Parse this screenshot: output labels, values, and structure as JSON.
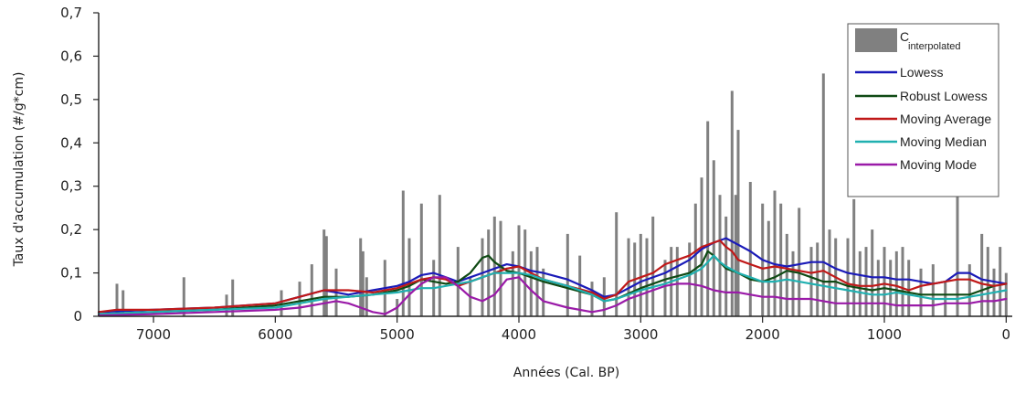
{
  "chart_data": {
    "type": "area",
    "title": "",
    "xlabel": "Années (Cal. BP)",
    "ylabel": "Taux d'accumulation (#/g*cm)",
    "xlim": [
      7450,
      -50
    ],
    "ylim": [
      0,
      0.7
    ],
    "x_reversed": true,
    "x_ticks": [
      7000,
      6000,
      5000,
      4000,
      3000,
      2000,
      1000,
      0
    ],
    "x_tick_labels": [
      "7000",
      "6000",
      "5000",
      "4000",
      "3000",
      "2000",
      "1000",
      "0"
    ],
    "y_ticks": [
      0,
      0.1,
      0.2,
      0.3,
      0.4,
      0.5,
      0.6,
      0.7
    ],
    "y_tick_labels": [
      "0",
      "0,1",
      "0,2",
      "0,3",
      "0,4",
      "0,5",
      "0,6",
      "0,7"
    ],
    "legend_position": "top-right",
    "legend": [
      {
        "label": "C",
        "sub": "interpolated",
        "kind": "bar",
        "color": "#808080"
      },
      {
        "label": "Lowess",
        "kind": "line",
        "color": "#1a1ab8"
      },
      {
        "label": "Robust Lowess",
        "kind": "line",
        "color": "#0f4a14"
      },
      {
        "label": "Moving Average",
        "kind": "line",
        "color": "#c01818"
      },
      {
        "label": "Moving Median",
        "kind": "line",
        "color": "#20b0b0"
      },
      {
        "label": "Moving Mode",
        "kind": "line",
        "color": "#9a1aa8"
      }
    ],
    "bars": {
      "name": "C interpolated",
      "color": "#808080",
      "x": [
        7300,
        7250,
        6750,
        6400,
        6350,
        5950,
        5800,
        5700,
        5600,
        5580,
        5500,
        5300,
        5280,
        5250,
        5100,
        5000,
        4950,
        4900,
        4800,
        4700,
        4650,
        4500,
        4400,
        4300,
        4250,
        4200,
        4150,
        4050,
        4000,
        3950,
        3900,
        3850,
        3800,
        3600,
        3500,
        3400,
        3300,
        3200,
        3100,
        3050,
        3000,
        2950,
        2900,
        2800,
        2750,
        2700,
        2600,
        2550,
        2500,
        2450,
        2400,
        2350,
        2300,
        2250,
        2220,
        2200,
        2100,
        2000,
        1950,
        1900,
        1850,
        1800,
        1750,
        1700,
        1600,
        1550,
        1500,
        1450,
        1400,
        1300,
        1250,
        1200,
        1150,
        1100,
        1050,
        1000,
        950,
        900,
        850,
        800,
        700,
        600,
        500,
        400,
        300,
        200,
        150,
        100,
        50,
        0
      ],
      "values": [
        0.075,
        0.06,
        0.09,
        0.05,
        0.085,
        0.06,
        0.08,
        0.12,
        0.2,
        0.185,
        0.11,
        0.18,
        0.15,
        0.09,
        0.13,
        0.04,
        0.29,
        0.18,
        0.26,
        0.13,
        0.28,
        0.16,
        0.09,
        0.18,
        0.2,
        0.23,
        0.22,
        0.15,
        0.21,
        0.2,
        0.15,
        0.16,
        0.11,
        0.19,
        0.14,
        0.08,
        0.09,
        0.24,
        0.18,
        0.17,
        0.19,
        0.18,
        0.23,
        0.13,
        0.16,
        0.16,
        0.17,
        0.26,
        0.32,
        0.45,
        0.36,
        0.28,
        0.23,
        0.52,
        0.28,
        0.43,
        0.31,
        0.26,
        0.22,
        0.29,
        0.26,
        0.19,
        0.15,
        0.25,
        0.16,
        0.17,
        0.56,
        0.2,
        0.18,
        0.18,
        0.27,
        0.15,
        0.16,
        0.2,
        0.13,
        0.16,
        0.13,
        0.15,
        0.16,
        0.13,
        0.11,
        0.12,
        0.08,
        0.29,
        0.12,
        0.19,
        0.16,
        0.11,
        0.16,
        0.1
      ]
    },
    "series": [
      {
        "name": "Lowess",
        "color": "#1a1ab8",
        "x": [
          7450,
          7000,
          6500,
          6000,
          5800,
          5600,
          5400,
          5200,
          5000,
          4900,
          4800,
          4700,
          4600,
          4500,
          4400,
          4300,
          4200,
          4100,
          4000,
          3900,
          3800,
          3600,
          3400,
          3300,
          3200,
          3000,
          2800,
          2600,
          2500,
          2400,
          2300,
          2200,
          2100,
          2000,
          1900,
          1800,
          1700,
          1600,
          1500,
          1400,
          1300,
          1200,
          1100,
          1000,
          900,
          800,
          700,
          600,
          500,
          400,
          300,
          200,
          100,
          0
        ],
        "y": [
          0.01,
          0.015,
          0.02,
          0.03,
          0.045,
          0.06,
          0.05,
          0.06,
          0.07,
          0.08,
          0.095,
          0.1,
          0.09,
          0.08,
          0.09,
          0.1,
          0.11,
          0.12,
          0.115,
          0.105,
          0.1,
          0.085,
          0.06,
          0.045,
          0.05,
          0.08,
          0.1,
          0.13,
          0.155,
          0.17,
          0.18,
          0.165,
          0.15,
          0.13,
          0.12,
          0.115,
          0.12,
          0.125,
          0.125,
          0.11,
          0.1,
          0.095,
          0.09,
          0.09,
          0.085,
          0.085,
          0.08,
          0.075,
          0.08,
          0.1,
          0.1,
          0.085,
          0.08,
          0.075
        ]
      },
      {
        "name": "Robust Lowess",
        "color": "#0f4a14",
        "x": [
          7450,
          7000,
          6500,
          6000,
          5800,
          5600,
          5400,
          5200,
          5000,
          4900,
          4800,
          4700,
          4600,
          4500,
          4400,
          4300,
          4250,
          4200,
          4100,
          4000,
          3900,
          3800,
          3600,
          3400,
          3300,
          3200,
          3000,
          2800,
          2600,
          2500,
          2450,
          2400,
          2350,
          2300,
          2200,
          2100,
          2000,
          1900,
          1800,
          1700,
          1600,
          1500,
          1400,
          1300,
          1200,
          1100,
          1000,
          900,
          800,
          700,
          600,
          500,
          400,
          300,
          200,
          100,
          0
        ],
        "y": [
          0.005,
          0.01,
          0.015,
          0.025,
          0.035,
          0.045,
          0.045,
          0.05,
          0.06,
          0.07,
          0.085,
          0.08,
          0.075,
          0.08,
          0.1,
          0.135,
          0.14,
          0.125,
          0.105,
          0.1,
          0.09,
          0.08,
          0.065,
          0.05,
          0.035,
          0.04,
          0.065,
          0.085,
          0.1,
          0.12,
          0.15,
          0.14,
          0.125,
          0.11,
          0.1,
          0.085,
          0.08,
          0.09,
          0.105,
          0.1,
          0.09,
          0.08,
          0.08,
          0.07,
          0.065,
          0.06,
          0.065,
          0.06,
          0.055,
          0.05,
          0.05,
          0.05,
          0.05,
          0.05,
          0.06,
          0.07,
          0.075
        ]
      },
      {
        "name": "Moving Average",
        "color": "#c01818",
        "x": [
          7450,
          7300,
          7000,
          6500,
          6000,
          5800,
          5600,
          5400,
          5200,
          5000,
          4900,
          4800,
          4700,
          4600,
          4500,
          4400,
          4300,
          4200,
          4100,
          4000,
          3900,
          3800,
          3600,
          3400,
          3300,
          3200,
          3100,
          3000,
          2900,
          2800,
          2700,
          2600,
          2500,
          2400,
          2350,
          2300,
          2250,
          2200,
          2100,
          2000,
          1900,
          1800,
          1700,
          1600,
          1500,
          1400,
          1300,
          1200,
          1100,
          1000,
          900,
          800,
          700,
          600,
          500,
          400,
          300,
          200,
          100,
          0
        ],
        "y": [
          0.01,
          0.015,
          0.015,
          0.02,
          0.03,
          0.045,
          0.06,
          0.06,
          0.055,
          0.065,
          0.075,
          0.085,
          0.09,
          0.085,
          0.07,
          0.08,
          0.09,
          0.1,
          0.11,
          0.115,
          0.1,
          0.085,
          0.07,
          0.055,
          0.04,
          0.05,
          0.08,
          0.09,
          0.1,
          0.12,
          0.13,
          0.14,
          0.16,
          0.17,
          0.175,
          0.16,
          0.15,
          0.13,
          0.12,
          0.11,
          0.115,
          0.11,
          0.105,
          0.1,
          0.105,
          0.09,
          0.075,
          0.07,
          0.07,
          0.075,
          0.07,
          0.06,
          0.07,
          0.075,
          0.08,
          0.085,
          0.085,
          0.075,
          0.07,
          0.075
        ]
      },
      {
        "name": "Moving Median",
        "color": "#20b0b0",
        "x": [
          7450,
          7000,
          6500,
          6000,
          5800,
          5600,
          5400,
          5200,
          5000,
          4900,
          4800,
          4700,
          4600,
          4500,
          4400,
          4300,
          4200,
          4100,
          4000,
          3900,
          3800,
          3600,
          3400,
          3300,
          3200,
          3000,
          2800,
          2700,
          2600,
          2500,
          2450,
          2400,
          2350,
          2300,
          2200,
          2100,
          2000,
          1900,
          1800,
          1700,
          1600,
          1500,
          1400,
          1300,
          1200,
          1100,
          1000,
          900,
          800,
          700,
          600,
          500,
          400,
          300,
          200,
          100,
          0
        ],
        "y": [
          0.005,
          0.01,
          0.015,
          0.02,
          0.03,
          0.04,
          0.045,
          0.05,
          0.055,
          0.06,
          0.065,
          0.065,
          0.07,
          0.075,
          0.08,
          0.09,
          0.1,
          0.1,
          0.1,
          0.095,
          0.085,
          0.07,
          0.05,
          0.035,
          0.04,
          0.06,
          0.075,
          0.085,
          0.095,
          0.11,
          0.125,
          0.14,
          0.125,
          0.115,
          0.1,
          0.09,
          0.08,
          0.08,
          0.085,
          0.08,
          0.075,
          0.07,
          0.065,
          0.06,
          0.055,
          0.05,
          0.05,
          0.055,
          0.05,
          0.045,
          0.04,
          0.04,
          0.04,
          0.045,
          0.05,
          0.055,
          0.06
        ]
      },
      {
        "name": "Moving Mode",
        "color": "#9a1aa8",
        "x": [
          7450,
          7000,
          6500,
          6000,
          5800,
          5600,
          5500,
          5400,
          5300,
          5200,
          5100,
          5000,
          4900,
          4800,
          4700,
          4600,
          4500,
          4400,
          4300,
          4200,
          4100,
          4000,
          3900,
          3800,
          3600,
          3400,
          3300,
          3200,
          3100,
          3000,
          2900,
          2800,
          2700,
          2600,
          2500,
          2400,
          2300,
          2200,
          2100,
          2000,
          1900,
          1800,
          1700,
          1600,
          1500,
          1400,
          1300,
          1200,
          1100,
          1000,
          900,
          800,
          700,
          600,
          500,
          400,
          300,
          200,
          100,
          0
        ],
        "y": [
          0.002,
          0.005,
          0.01,
          0.015,
          0.02,
          0.03,
          0.035,
          0.03,
          0.02,
          0.01,
          0.005,
          0.02,
          0.05,
          0.075,
          0.09,
          0.09,
          0.07,
          0.045,
          0.035,
          0.05,
          0.085,
          0.09,
          0.06,
          0.035,
          0.02,
          0.01,
          0.015,
          0.025,
          0.04,
          0.05,
          0.06,
          0.07,
          0.075,
          0.075,
          0.07,
          0.06,
          0.055,
          0.055,
          0.05,
          0.045,
          0.045,
          0.04,
          0.04,
          0.04,
          0.035,
          0.03,
          0.03,
          0.03,
          0.03,
          0.03,
          0.025,
          0.025,
          0.025,
          0.025,
          0.03,
          0.03,
          0.03,
          0.035,
          0.035,
          0.04
        ]
      }
    ]
  }
}
